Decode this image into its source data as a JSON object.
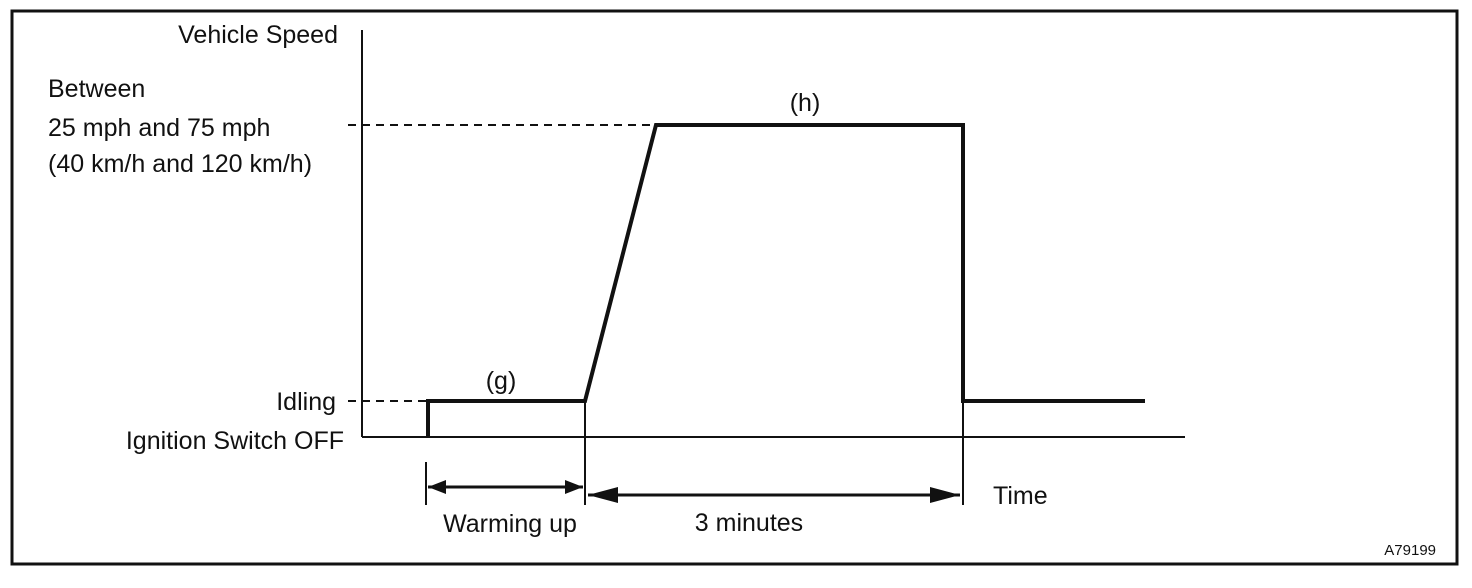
{
  "diagram": {
    "y_axis_title": "Vehicle Speed",
    "speed_range": {
      "line1": "Between",
      "line2": "25 mph and 75 mph",
      "line3": "(40 km/h and 120 km/h)"
    },
    "idling_label": "Idling",
    "ignition_off_label": "Ignition Switch OFF",
    "x_axis_title": "Time",
    "step_g_label": "(g)",
    "step_h_label": "(h)",
    "warming_up_label": "Warming up",
    "duration_label": "3 minutes",
    "figure_id": "A79199"
  },
  "colors": {
    "line": "#111111",
    "background": "#ffffff"
  }
}
